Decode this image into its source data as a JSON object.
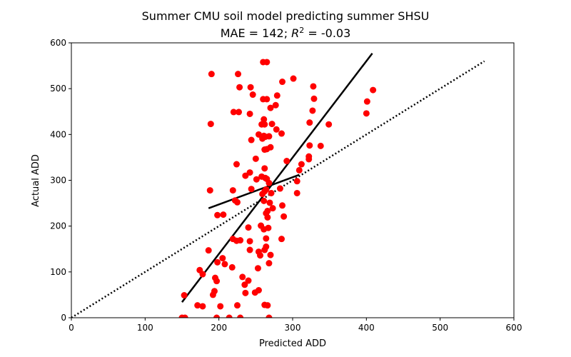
{
  "chart_data": {
    "type": "scatter",
    "title": "Summer CMU soil model predicting summer SHSU",
    "subtitle_prefix": "MAE = 142; ",
    "subtitle_r": "R",
    "subtitle_sup": "2",
    "subtitle_suffix": " = -0.03",
    "xlabel": "Predicted ADD",
    "ylabel": "Actual ADD",
    "xlim": [
      0,
      600
    ],
    "ylim": [
      0,
      600
    ],
    "xticks": [
      0,
      100,
      200,
      300,
      400,
      500,
      600
    ],
    "yticks": [
      0,
      100,
      200,
      300,
      400,
      500,
      600
    ],
    "grid": false,
    "colors": {
      "points": "#ff0000",
      "lines": "#000000"
    },
    "points": [
      [
        190,
        532
      ],
      [
        226,
        532
      ],
      [
        260,
        558
      ],
      [
        265,
        558
      ],
      [
        301,
        522
      ],
      [
        286,
        515
      ],
      [
        228,
        503
      ],
      [
        243,
        503
      ],
      [
        328,
        505
      ],
      [
        409,
        497
      ],
      [
        246,
        487
      ],
      [
        279,
        485
      ],
      [
        260,
        477
      ],
      [
        265,
        477
      ],
      [
        329,
        478
      ],
      [
        401,
        472
      ],
      [
        270,
        458
      ],
      [
        277,
        464
      ],
      [
        220,
        449
      ],
      [
        227,
        449
      ],
      [
        242,
        445
      ],
      [
        327,
        452
      ],
      [
        400,
        446
      ],
      [
        261,
        433
      ],
      [
        272,
        423
      ],
      [
        262,
        422
      ],
      [
        258,
        422
      ],
      [
        189,
        423
      ],
      [
        323,
        426
      ],
      [
        349,
        422
      ],
      [
        254,
        400
      ],
      [
        261,
        397
      ],
      [
        263,
        395
      ],
      [
        268,
        396
      ],
      [
        278,
        411
      ],
      [
        285,
        402
      ],
      [
        244,
        388
      ],
      [
        259,
        391
      ],
      [
        323,
        376
      ],
      [
        338,
        375
      ],
      [
        262,
        367
      ],
      [
        265,
        368
      ],
      [
        270,
        372
      ],
      [
        250,
        347
      ],
      [
        224,
        335
      ],
      [
        262,
        326
      ],
      [
        292,
        342
      ],
      [
        322,
        352
      ],
      [
        322,
        346
      ],
      [
        312,
        335
      ],
      [
        242,
        317
      ],
      [
        236,
        310
      ],
      [
        251,
        302
      ],
      [
        258,
        308
      ],
      [
        263,
        305
      ],
      [
        265,
        303
      ],
      [
        268,
        294
      ],
      [
        306,
        298
      ],
      [
        309,
        322
      ],
      [
        188,
        278
      ],
      [
        219,
        278
      ],
      [
        244,
        281
      ],
      [
        264,
        280
      ],
      [
        259,
        270
      ],
      [
        262,
        276
      ],
      [
        271,
        272
      ],
      [
        283,
        282
      ],
      [
        306,
        272
      ],
      [
        222,
        256
      ],
      [
        225,
        252
      ],
      [
        261,
        255
      ],
      [
        269,
        251
      ],
      [
        286,
        245
      ],
      [
        198,
        224
      ],
      [
        206,
        225
      ],
      [
        264,
        228
      ],
      [
        266,
        233
      ],
      [
        266,
        219
      ],
      [
        273,
        239
      ],
      [
        288,
        221
      ],
      [
        240,
        197
      ],
      [
        257,
        201
      ],
      [
        261,
        193
      ],
      [
        267,
        196
      ],
      [
        219,
        172
      ],
      [
        224,
        168
      ],
      [
        229,
        169
      ],
      [
        242,
        167
      ],
      [
        264,
        173
      ],
      [
        285,
        172
      ],
      [
        174,
        104
      ],
      [
        178,
        95
      ],
      [
        186,
        147
      ],
      [
        198,
        121
      ],
      [
        205,
        130
      ],
      [
        208,
        117
      ],
      [
        242,
        148
      ],
      [
        254,
        144
      ],
      [
        256,
        136
      ],
      [
        262,
        148
      ],
      [
        264,
        155
      ],
      [
        270,
        137
      ],
      [
        218,
        110
      ],
      [
        232,
        89
      ],
      [
        240,
        81
      ],
      [
        253,
        108
      ],
      [
        268,
        119
      ],
      [
        195,
        87
      ],
      [
        197,
        80
      ],
      [
        235,
        72
      ],
      [
        194,
        58
      ],
      [
        192,
        50
      ],
      [
        236,
        54
      ],
      [
        249,
        55
      ],
      [
        254,
        60
      ],
      [
        153,
        49
      ],
      [
        171,
        27
      ],
      [
        178,
        25
      ],
      [
        202,
        25
      ],
      [
        225,
        27
      ],
      [
        262,
        28
      ],
      [
        266,
        27
      ],
      [
        150,
        0
      ],
      [
        154,
        0
      ],
      [
        197,
        0
      ],
      [
        214,
        0
      ],
      [
        229,
        0
      ],
      [
        268,
        0
      ]
    ],
    "lines": [
      {
        "style": "solid",
        "x": [
          150,
          408
        ],
        "y": [
          34,
          577
        ]
      },
      {
        "style": "solid",
        "x": [
          186,
          309
        ],
        "y": [
          239,
          312
        ]
      },
      {
        "style": "dotted",
        "x": [
          0,
          560
        ],
        "y": [
          0,
          560
        ]
      }
    ]
  }
}
